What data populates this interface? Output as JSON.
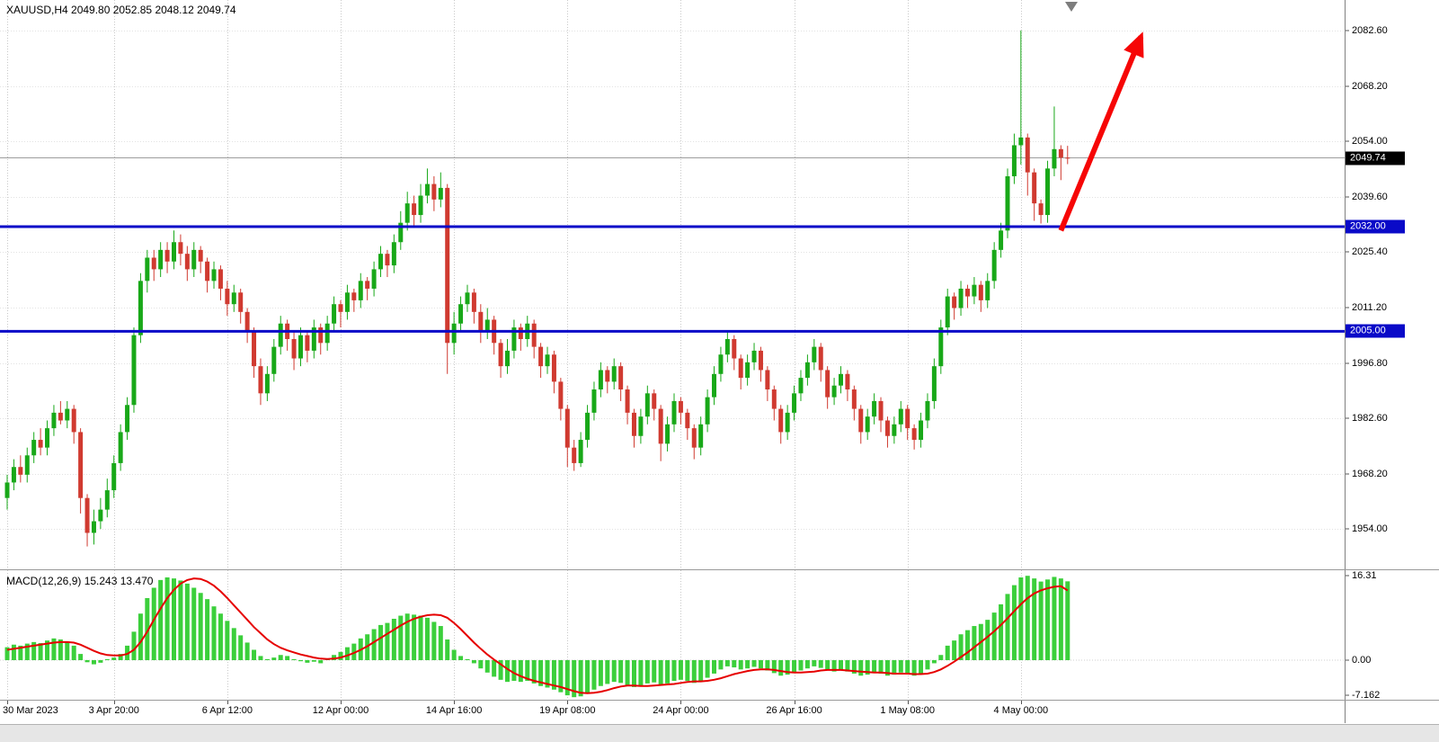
{
  "header": {
    "symbol_period": "XAUUSD,H4",
    "open": "2049.80",
    "high": "2052.85",
    "low": "2048.12",
    "close": "2049.74",
    "display": "XAUUSD,H4 2049.80 2052.85 2048.12 2049.74"
  },
  "colors": {
    "background": "#ffffff",
    "grid": "#c9c9c9",
    "bull": "#18a818",
    "bear": "#d03a30",
    "macd_histogram": "#3bcf3b",
    "macd_signal": "#e60000",
    "level_line": "#0a0ac8",
    "current_price_line": "#9e9e9e",
    "current_price_tag_bg": "#000000",
    "arrow": "#f60606",
    "axis_text": "#000000"
  },
  "chart_data": {
    "type": "candlestick",
    "symbol": "XAUUSD",
    "timeframe": "H4",
    "price_axis_ticks": [
      {
        "label": "2082.60",
        "value": 2082.6
      },
      {
        "label": "2068.20",
        "value": 2068.2
      },
      {
        "label": "2054.00",
        "value": 2054.0
      },
      {
        "label": "2039.60",
        "value": 2039.6
      },
      {
        "label": "2025.40",
        "value": 2025.4
      },
      {
        "label": "2011.20",
        "value": 2011.2
      },
      {
        "label": "1996.80",
        "value": 1996.8
      },
      {
        "label": "1982.60",
        "value": 1982.6
      },
      {
        "label": "1968.20",
        "value": 1968.2
      },
      {
        "label": "1954.00",
        "value": 1954.0
      }
    ],
    "time_axis_ticks": [
      {
        "label": "30 Mar 2023",
        "bar": 0
      },
      {
        "label": "3 Apr 20:00",
        "bar": 16
      },
      {
        "label": "6 Apr 12:00",
        "bar": 33
      },
      {
        "label": "12 Apr 00:00",
        "bar": 50
      },
      {
        "label": "14 Apr 16:00",
        "bar": 67
      },
      {
        "label": "19 Apr 08:00",
        "bar": 84
      },
      {
        "label": "24 Apr 00:00",
        "bar": 101
      },
      {
        "label": "26 Apr 16:00",
        "bar": 118
      },
      {
        "label": "1 May 08:00",
        "bar": 135
      },
      {
        "label": "4 May 00:00",
        "bar": 152
      }
    ],
    "candles": [
      [
        1962,
        1968,
        1959,
        1966
      ],
      [
        1966,
        1972,
        1964,
        1970
      ],
      [
        1970,
        1973,
        1966,
        1968
      ],
      [
        1968,
        1975,
        1966,
        1973
      ],
      [
        1973,
        1979,
        1971,
        1977
      ],
      [
        1977,
        1980,
        1973,
        1975
      ],
      [
        1975,
        1982,
        1973,
        1980
      ],
      [
        1980,
        1986,
        1978,
        1984
      ],
      [
        1984,
        1987,
        1981,
        1982
      ],
      [
        1982,
        1987,
        1980,
        1985
      ],
      [
        1985,
        1986,
        1976,
        1979
      ],
      [
        1979,
        1980,
        1958,
        1962
      ],
      [
        1962,
        1963,
        1949.5,
        1953
      ],
      [
        1953,
        1959,
        1950,
        1956
      ],
      [
        1956,
        1962,
        1954,
        1959
      ],
      [
        1959,
        1967,
        1957,
        1964
      ],
      [
        1964,
        1973,
        1962,
        1971
      ],
      [
        1971,
        1981,
        1969,
        1979
      ],
      [
        1979,
        1988,
        1977,
        1986
      ],
      [
        1986,
        2006,
        1984,
        2004
      ],
      [
        2004,
        2020,
        2002,
        2018
      ],
      [
        2018,
        2026,
        2015,
        2024
      ],
      [
        2024,
        2026,
        2018,
        2021
      ],
      [
        2021,
        2028,
        2019,
        2026
      ],
      [
        2026,
        2028,
        2020,
        2023
      ],
      [
        2023,
        2031,
        2021,
        2028
      ],
      [
        2028,
        2030,
        2022,
        2025
      ],
      [
        2025,
        2027,
        2018,
        2021
      ],
      [
        2021,
        2028,
        2019,
        2026
      ],
      [
        2026,
        2027,
        2020,
        2023
      ],
      [
        2023,
        2024,
        2015,
        2018
      ],
      [
        2018,
        2023,
        2016,
        2021
      ],
      [
        2021,
        2022,
        2013,
        2016
      ],
      [
        2016,
        2018,
        2009,
        2012
      ],
      [
        2012,
        2017,
        2010,
        2015
      ],
      [
        2015,
        2016,
        2007,
        2010
      ],
      [
        2010,
        2011,
        2002,
        2005
      ],
      [
        2005,
        2006,
        1993,
        1996
      ],
      [
        1996,
        1998,
        1986,
        1989
      ],
      [
        1989,
        1996,
        1987,
        1994
      ],
      [
        1994,
        2003,
        1992,
        2001
      ],
      [
        2001,
        2009,
        1999,
        2007
      ],
      [
        2007,
        2008,
        2000,
        2003
      ],
      [
        2003,
        2005,
        1995,
        1998
      ],
      [
        1998,
        2006,
        1996,
        2004
      ],
      [
        2004,
        2005,
        1997,
        2000
      ],
      [
        2000,
        2008,
        1998,
        2006
      ],
      [
        2006,
        2007,
        1999,
        2002
      ],
      [
        2002,
        2009,
        2000,
        2007
      ],
      [
        2007,
        2014,
        2005,
        2012
      ],
      [
        2012,
        2013,
        2006,
        2010
      ],
      [
        2010,
        2017,
        2008,
        2015
      ],
      [
        2015,
        2016,
        2010,
        2013
      ],
      [
        2013,
        2020,
        2011,
        2018
      ],
      [
        2018,
        2019,
        2013,
        2016
      ],
      [
        2016,
        2023,
        2014,
        2021
      ],
      [
        2021,
        2027,
        2019,
        2025
      ],
      [
        2025,
        2026,
        2019,
        2022
      ],
      [
        2022,
        2030,
        2020,
        2028
      ],
      [
        2028,
        2036,
        2026,
        2033
      ],
      [
        2033,
        2041,
        2031,
        2038
      ],
      [
        2038,
        2040,
        2032,
        2035
      ],
      [
        2035,
        2043,
        2033,
        2040
      ],
      [
        2040,
        2047,
        2038,
        2043
      ],
      [
        2043,
        2045,
        2036,
        2039
      ],
      [
        2039,
        2046,
        2037,
        2042
      ],
      [
        2042,
        2043,
        1994,
        2002
      ],
      [
        2002,
        2010,
        1999,
        2007
      ],
      [
        2007,
        2014,
        2005,
        2012
      ],
      [
        2012,
        2017,
        2010,
        2015
      ],
      [
        2015,
        2016,
        2007,
        2010
      ],
      [
        2010,
        2012,
        2002,
        2005
      ],
      [
        2005,
        2011,
        2003,
        2008
      ],
      [
        2008,
        2009,
        1999,
        2002
      ],
      [
        2002,
        2003,
        1993,
        1996
      ],
      [
        1996,
        2003,
        1994,
        2000
      ],
      [
        2000,
        2008,
        1998,
        2006
      ],
      [
        2006,
        2007,
        2000,
        2003
      ],
      [
        2003,
        2009,
        2001,
        2007
      ],
      [
        2007,
        2008,
        1998,
        2001
      ],
      [
        2001,
        2002,
        1993,
        1996
      ],
      [
        1996,
        2001,
        1994,
        1999
      ],
      [
        1999,
        2000,
        1989,
        1992
      ],
      [
        1992,
        1993,
        1982,
        1985
      ],
      [
        1985,
        1986,
        1970,
        1975
      ],
      [
        1975,
        1977,
        1969,
        1971
      ],
      [
        1971,
        1979,
        1970,
        1977
      ],
      [
        1977,
        1986,
        1975,
        1984
      ],
      [
        1984,
        1992,
        1982,
        1990
      ],
      [
        1990,
        1997,
        1988,
        1995
      ],
      [
        1995,
        1996,
        1989,
        1992
      ],
      [
        1992,
        1998,
        1990,
        1996
      ],
      [
        1996,
        1997,
        1987,
        1990
      ],
      [
        1990,
        1991,
        1981,
        1984
      ],
      [
        1984,
        1985,
        1975,
        1978
      ],
      [
        1978,
        1985,
        1976,
        1983
      ],
      [
        1983,
        1991,
        1981,
        1989
      ],
      [
        1989,
        1990,
        1982,
        1985
      ],
      [
        1985,
        1986,
        1971.5,
        1976
      ],
      [
        1976,
        1983,
        1974,
        1981
      ],
      [
        1981,
        1989,
        1979,
        1987
      ],
      [
        1987,
        1988,
        1981,
        1984
      ],
      [
        1984,
        1985,
        1977,
        1980
      ],
      [
        1980,
        1981,
        1972,
        1975
      ],
      [
        1975,
        1983,
        1973,
        1981
      ],
      [
        1981,
        1990,
        1979,
        1988
      ],
      [
        1988,
        1996,
        1986,
        1994
      ],
      [
        1994,
        2001,
        1992,
        1999
      ],
      [
        1999,
        2005,
        1997,
        2003
      ],
      [
        2003,
        2004,
        1995,
        1998
      ],
      [
        1998,
        1999,
        1990,
        1993
      ],
      [
        1993,
        1999,
        1991,
        1997
      ],
      [
        1997,
        2002,
        1995,
        2000
      ],
      [
        2000,
        2001,
        1992,
        1995
      ],
      [
        1995,
        1996,
        1987,
        1990
      ],
      [
        1990,
        1991,
        1982,
        1985
      ],
      [
        1985,
        1986,
        1976,
        1979
      ],
      [
        1979,
        1986,
        1977,
        1984
      ],
      [
        1984,
        1991,
        1982,
        1989
      ],
      [
        1989,
        1995,
        1987,
        1993
      ],
      [
        1993,
        1999,
        1991,
        1997
      ],
      [
        1997,
        2003,
        1995,
        2001
      ],
      [
        2001,
        2002,
        1992,
        1995
      ],
      [
        1995,
        1996,
        1985,
        1988
      ],
      [
        1988,
        1993,
        1986,
        1991
      ],
      [
        1991,
        1996,
        1989,
        1994
      ],
      [
        1994,
        1995,
        1987,
        1990
      ],
      [
        1990,
        1991,
        1982,
        1985
      ],
      [
        1985,
        1986,
        1976,
        1979
      ],
      [
        1979,
        1985,
        1977,
        1983
      ],
      [
        1983,
        1989,
        1981,
        1987
      ],
      [
        1987,
        1988,
        1979,
        1982
      ],
      [
        1982,
        1983,
        1975,
        1978
      ],
      [
        1978,
        1983,
        1976,
        1981
      ],
      [
        1981,
        1987,
        1979,
        1985
      ],
      [
        1985,
        1986,
        1977,
        1980
      ],
      [
        1980,
        1981,
        1974.5,
        1977
      ],
      [
        1977,
        1984,
        1975,
        1982
      ],
      [
        1982,
        1989,
        1980,
        1987
      ],
      [
        1987,
        1998,
        1985,
        1996
      ],
      [
        1996,
        2008,
        1994,
        2006
      ],
      [
        2006,
        2016,
        2004,
        2014
      ],
      [
        2014,
        2015,
        2008,
        2011
      ],
      [
        2011,
        2018,
        2009,
        2016
      ],
      [
        2016,
        2017,
        2011,
        2014
      ],
      [
        2014,
        2019,
        2012,
        2017
      ],
      [
        2017,
        2018,
        2010,
        2013
      ],
      [
        2013,
        2020,
        2011,
        2018
      ],
      [
        2018,
        2028,
        2016,
        2026
      ],
      [
        2026,
        2033,
        2024,
        2031
      ],
      [
        2031,
        2047,
        2029,
        2045
      ],
      [
        2045,
        2056,
        2043,
        2053
      ],
      [
        2053,
        2082.6,
        2048,
        2055
      ],
      [
        2055,
        2056,
        2040,
        2046
      ],
      [
        2046,
        2047,
        2033.5,
        2038
      ],
      [
        2038,
        2039,
        2032.8,
        2035
      ],
      [
        2035,
        2049,
        2033,
        2047
      ],
      [
        2047,
        2063,
        2045,
        2052
      ],
      [
        2052,
        2053,
        2044,
        2049.8
      ],
      [
        2049.8,
        2052.85,
        2048.12,
        2049.74
      ]
    ],
    "horizontal_levels": [
      {
        "label": "2032.00",
        "value": 2032.0
      },
      {
        "label": "2005.00",
        "value": 2005.0
      }
    ],
    "current_price": {
      "label": "2049.74",
      "value": 2049.74
    },
    "indicator": {
      "name": "MACD",
      "label": "MACD(12,26,9) 15.243 13.470",
      "fast": 12,
      "slow": 26,
      "signal_period": 9,
      "macd_value": 15.243,
      "signal_value": 13.47,
      "axis_ticks": [
        {
          "label": "16.31",
          "value": 16.31
        },
        {
          "label": "0.00",
          "value": 0
        },
        {
          "label": "-7.162",
          "value": -7.162
        }
      ],
      "histogram": [
        2.5,
        3.0,
        2.8,
        3.2,
        3.5,
        3.3,
        3.8,
        4.2,
        4.0,
        3.6,
        2.8,
        1.2,
        -0.4,
        -0.8,
        -0.5,
        0.2,
        0.5,
        1.2,
        2.8,
        5.5,
        9.0,
        12.0,
        14.0,
        15.5,
        16.0,
        15.8,
        15.4,
        14.8,
        14.0,
        13.0,
        11.8,
        10.4,
        9.0,
        7.6,
        6.2,
        4.8,
        3.4,
        2.0,
        0.8,
        0.2,
        0.5,
        1.0,
        0.8,
        0.2,
        -0.2,
        -0.5,
        -0.3,
        -0.6,
        0.3,
        1.0,
        1.6,
        2.5,
        3.2,
        4.2,
        5.0,
        6.0,
        6.8,
        7.2,
        8.0,
        8.6,
        9.0,
        8.8,
        8.6,
        8.2,
        7.4,
        6.6,
        4.0,
        2.0,
        0.8,
        0.2,
        -0.6,
        -1.6,
        -2.4,
        -3.2,
        -3.8,
        -4.2,
        -4.0,
        -4.2,
        -4.0,
        -4.5,
        -5.0,
        -5.3,
        -5.7,
        -6.2,
        -6.8,
        -7.162,
        -7.0,
        -6.4,
        -5.7,
        -5.0,
        -4.6,
        -4.2,
        -4.4,
        -4.8,
        -5.2,
        -5.0,
        -4.5,
        -4.3,
        -4.8,
        -4.5,
        -4.0,
        -3.8,
        -4.0,
        -4.4,
        -4.0,
        -3.4,
        -2.6,
        -1.8,
        -1.2,
        -1.4,
        -1.8,
        -1.6,
        -1.3,
        -1.6,
        -2.0,
        -2.5,
        -3.0,
        -2.8,
        -2.4,
        -2.0,
        -1.6,
        -1.2,
        -1.5,
        -2.0,
        -2.2,
        -2.0,
        -2.2,
        -2.6,
        -3.0,
        -2.8,
        -2.4,
        -2.6,
        -3.0,
        -2.8,
        -2.4,
        -2.6,
        -3.0,
        -2.6,
        -1.8,
        -0.6,
        1.0,
        2.8,
        3.8,
        5.0,
        5.8,
        6.6,
        7.0,
        7.8,
        9.2,
        10.8,
        12.8,
        14.5,
        16.0,
        16.31,
        15.8,
        15.2,
        15.6,
        16.1,
        15.8,
        15.243
      ],
      "signal_line": [
        2.0,
        2.2,
        2.4,
        2.6,
        2.8,
        3.0,
        3.2,
        3.4,
        3.5,
        3.5,
        3.4,
        3.0,
        2.4,
        1.8,
        1.3,
        1.0,
        0.9,
        0.9,
        1.2,
        2.0,
        3.5,
        5.5,
        7.8,
        10.0,
        12.0,
        13.6,
        14.8,
        15.5,
        15.8,
        15.7,
        15.2,
        14.4,
        13.3,
        12.0,
        10.6,
        9.2,
        7.8,
        6.4,
        5.2,
        4.0,
        3.1,
        2.4,
        1.9,
        1.5,
        1.1,
        0.8,
        0.5,
        0.3,
        0.2,
        0.3,
        0.5,
        0.9,
        1.4,
        2.0,
        2.7,
        3.5,
        4.3,
        5.1,
        5.9,
        6.7,
        7.4,
        8.0,
        8.4,
        8.7,
        8.8,
        8.7,
        8.2,
        7.2,
        6.0,
        4.7,
        3.4,
        2.2,
        1.1,
        0.1,
        -0.8,
        -1.7,
        -2.5,
        -3.1,
        -3.6,
        -4.0,
        -4.3,
        -4.6,
        -4.9,
        -5.2,
        -5.6,
        -6.0,
        -6.3,
        -6.4,
        -6.3,
        -6.1,
        -5.8,
        -5.4,
        -5.1,
        -4.9,
        -4.9,
        -5.0,
        -5.0,
        -4.9,
        -4.8,
        -4.7,
        -4.6,
        -4.4,
        -4.2,
        -4.1,
        -4.1,
        -4.0,
        -3.8,
        -3.5,
        -3.1,
        -2.7,
        -2.4,
        -2.1,
        -1.9,
        -1.8,
        -1.8,
        -1.9,
        -2.1,
        -2.3,
        -2.4,
        -2.4,
        -2.3,
        -2.2,
        -2.0,
        -1.9,
        -1.9,
        -1.9,
        -2.0,
        -2.1,
        -2.2,
        -2.3,
        -2.4,
        -2.4,
        -2.5,
        -2.6,
        -2.6,
        -2.6,
        -2.7,
        -2.7,
        -2.6,
        -2.3,
        -1.8,
        -1.1,
        -0.3,
        0.6,
        1.5,
        2.5,
        3.5,
        4.5,
        5.6,
        6.8,
        8.1,
        9.5,
        10.8,
        12.0,
        12.9,
        13.5,
        13.9,
        14.2,
        14.3,
        13.47
      ]
    },
    "annotations": [
      {
        "type": "arrow",
        "from_bar": 158,
        "from_price": 2031,
        "to_bar": 170,
        "to_price": 2081
      }
    ]
  }
}
